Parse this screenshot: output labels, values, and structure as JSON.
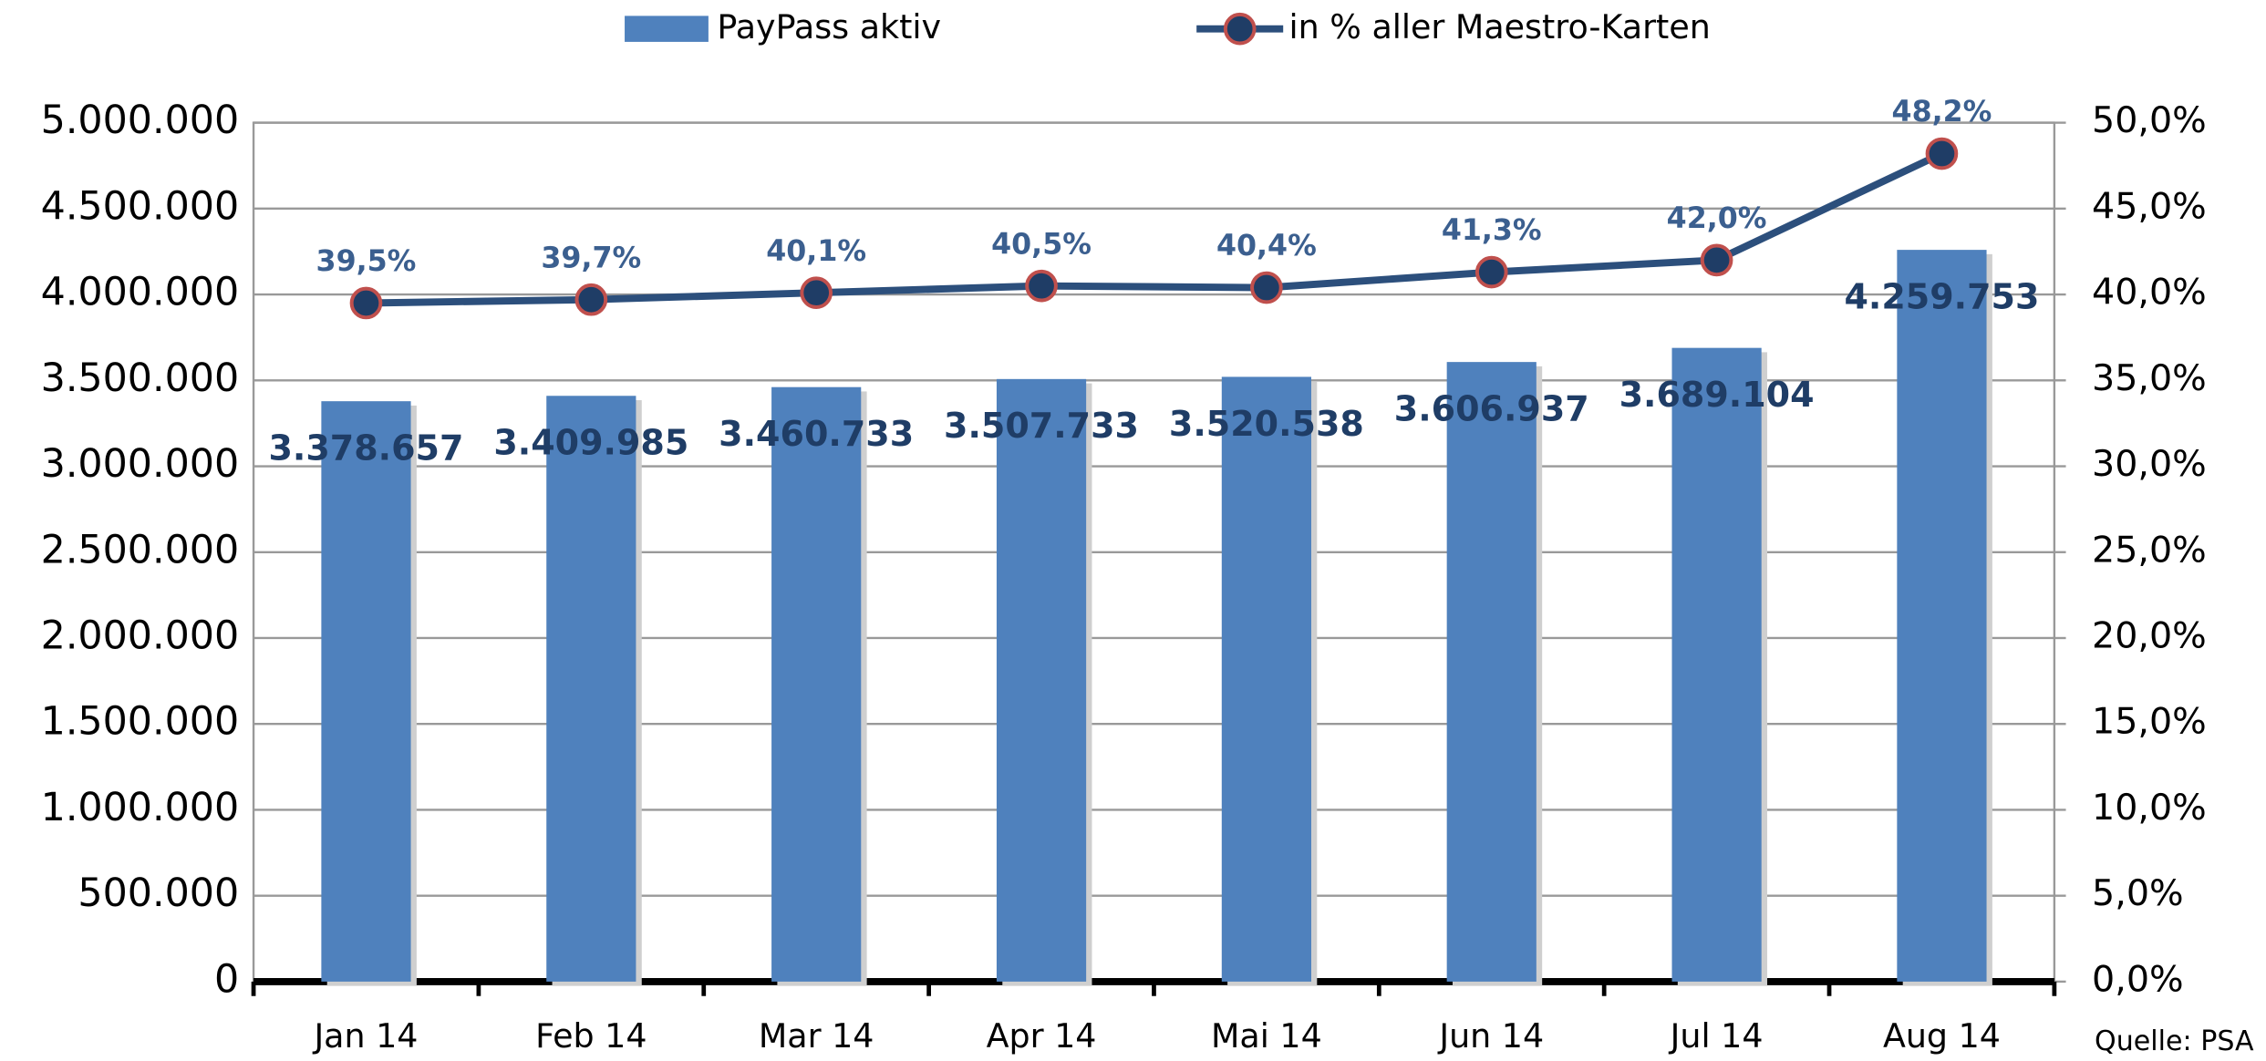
{
  "chart_data": {
    "type": "bar",
    "categories": [
      "Jan 14",
      "Feb 14",
      "Mar 14",
      "Apr 14",
      "Mai 14",
      "Jun 14",
      "Jul 14",
      "Aug 14"
    ],
    "series": [
      {
        "name": "PayPass aktiv",
        "type": "bar",
        "color": "#4f81bd",
        "values": [
          3378657,
          3409985,
          3460733,
          3507733,
          3520538,
          3606937,
          3689104,
          4259753
        ],
        "value_labels": [
          "3.378.657",
          "3.409.985",
          "3.460.733",
          "3.507.733",
          "3.520.538",
          "3.606.937",
          "3.689.104",
          "4.259.753"
        ]
      },
      {
        "name": "in % aller Maestro-Karten",
        "type": "line",
        "axis": "y2",
        "color": "#2c4f7c",
        "marker_edge": "#c0504d",
        "values": [
          39.5,
          39.7,
          40.1,
          40.5,
          40.4,
          41.3,
          42.0,
          48.2
        ],
        "value_labels": [
          "39,5%",
          "39,7%",
          "40,1%",
          "40,5%",
          "40,4%",
          "41,3%",
          "42,0%",
          "48,2%"
        ]
      }
    ],
    "ylim": [
      0,
      5000000
    ],
    "yticks": [
      0,
      {
        "value": 500000,
        "label": "500.000"
      },
      {
        "value": 1000000,
        "label": "1.000.000"
      },
      {
        "value": 1500000,
        "label": "1.500.000"
      },
      {
        "value": 2000000,
        "label": "2.000.000"
      },
      {
        "value": 2500000,
        "label": "2.500.000"
      },
      {
        "value": 3000000,
        "label": "3.000.000"
      },
      {
        "value": 3500000,
        "label": "3.500.000"
      },
      {
        "value": 4000000,
        "label": "4.000.000"
      },
      {
        "value": 4500000,
        "label": "4.500.000"
      },
      {
        "value": 5000000,
        "label": "5.000.000"
      }
    ],
    "y2lim": [
      0,
      50
    ],
    "y2ticks": [
      {
        "value": 0,
        "label": "0,0%"
      },
      {
        "value": 5,
        "label": "5,0%"
      },
      {
        "value": 10,
        "label": "10,0%"
      },
      {
        "value": 15,
        "label": "15,0%"
      },
      {
        "value": 20,
        "label": "20,0%"
      },
      {
        "value": 25,
        "label": "25,0%"
      },
      {
        "value": 30,
        "label": "30,0%"
      },
      {
        "value": 35,
        "label": "35,0%"
      },
      {
        "value": 40,
        "label": "40,0%"
      },
      {
        "value": 45,
        "label": "45,0%"
      },
      {
        "value": 50,
        "label": "50,0%"
      }
    ],
    "grid": true,
    "legend": "top",
    "annotation": "Quelle: PSA"
  }
}
